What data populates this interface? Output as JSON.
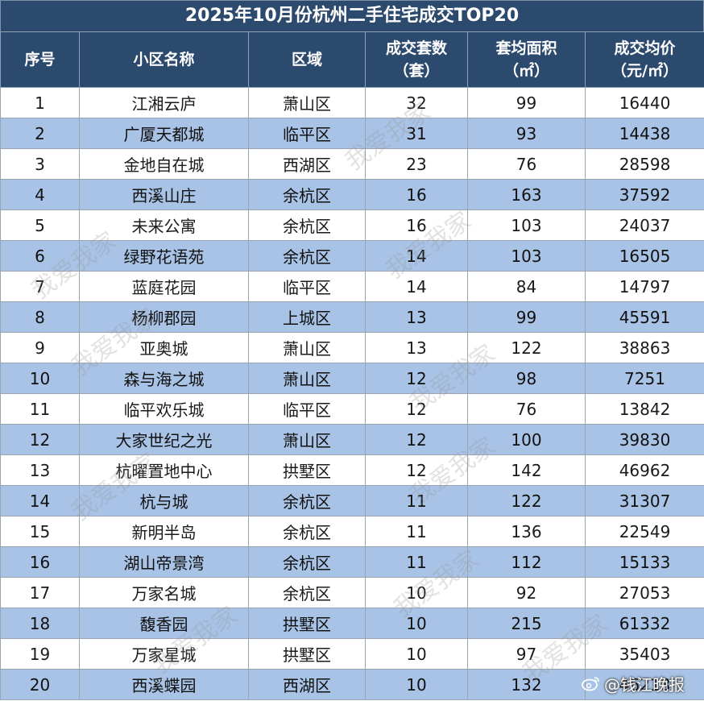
{
  "title": "2025年10月份杭州二手住宅成交TOP20",
  "headers": {
    "rank": "序号",
    "name": "小区名称",
    "district": "区域",
    "deals_line1": "成交套数",
    "deals_line2": "（套）",
    "area_line1": "套均面积",
    "area_line2": "（㎡）",
    "price_line1": "成交均价",
    "price_line2": "（元/㎡）"
  },
  "rows": [
    {
      "rank": "1",
      "name": "江湘云庐",
      "district": "萧山区",
      "deals": "32",
      "area": "99",
      "price": "16440"
    },
    {
      "rank": "2",
      "name": "广厦天都城",
      "district": "临平区",
      "deals": "31",
      "area": "93",
      "price": "14438"
    },
    {
      "rank": "3",
      "name": "金地自在城",
      "district": "西湖区",
      "deals": "23",
      "area": "76",
      "price": "28598"
    },
    {
      "rank": "4",
      "name": "西溪山庄",
      "district": "余杭区",
      "deals": "16",
      "area": "163",
      "price": "37592"
    },
    {
      "rank": "5",
      "name": "未来公寓",
      "district": "余杭区",
      "deals": "16",
      "area": "103",
      "price": "24037"
    },
    {
      "rank": "6",
      "name": "绿野花语苑",
      "district": "余杭区",
      "deals": "14",
      "area": "103",
      "price": "16505"
    },
    {
      "rank": "7",
      "name": "蓝庭花园",
      "district": "临平区",
      "deals": "14",
      "area": "84",
      "price": "14797"
    },
    {
      "rank": "8",
      "name": "杨柳郡园",
      "district": "上城区",
      "deals": "13",
      "area": "99",
      "price": "45591"
    },
    {
      "rank": "9",
      "name": "亚奥城",
      "district": "萧山区",
      "deals": "13",
      "area": "122",
      "price": "38863"
    },
    {
      "rank": "10",
      "name": "森与海之城",
      "district": "萧山区",
      "deals": "12",
      "area": "98",
      "price": "7251"
    },
    {
      "rank": "11",
      "name": "临平欢乐城",
      "district": "临平区",
      "deals": "12",
      "area": "76",
      "price": "13842"
    },
    {
      "rank": "12",
      "name": "大家世纪之光",
      "district": "萧山区",
      "deals": "12",
      "area": "100",
      "price": "39830"
    },
    {
      "rank": "13",
      "name": "杭曜置地中心",
      "district": "拱墅区",
      "deals": "12",
      "area": "142",
      "price": "46962"
    },
    {
      "rank": "14",
      "name": "杭与城",
      "district": "余杭区",
      "deals": "11",
      "area": "122",
      "price": "31307"
    },
    {
      "rank": "15",
      "name": "新明半岛",
      "district": "余杭区",
      "deals": "11",
      "area": "136",
      "price": "22549"
    },
    {
      "rank": "16",
      "name": "湖山帝景湾",
      "district": "余杭区",
      "deals": "11",
      "area": "112",
      "price": "15133"
    },
    {
      "rank": "17",
      "name": "万家名城",
      "district": "余杭区",
      "deals": "10",
      "area": "92",
      "price": "27053"
    },
    {
      "rank": "18",
      "name": "馥香园",
      "district": "拱墅区",
      "deals": "10",
      "area": "215",
      "price": "61332"
    },
    {
      "rank": "19",
      "name": "万家星城",
      "district": "拱墅区",
      "deals": "10",
      "area": "97",
      "price": "35403"
    },
    {
      "rank": "20",
      "name": "西溪蝶园",
      "district": "西湖区",
      "deals": "10",
      "area": "132",
      "price": "46218"
    }
  ],
  "watermark": "我爱我家",
  "credit": "@钱江晚报",
  "credit_icon": "weibo-icon"
}
